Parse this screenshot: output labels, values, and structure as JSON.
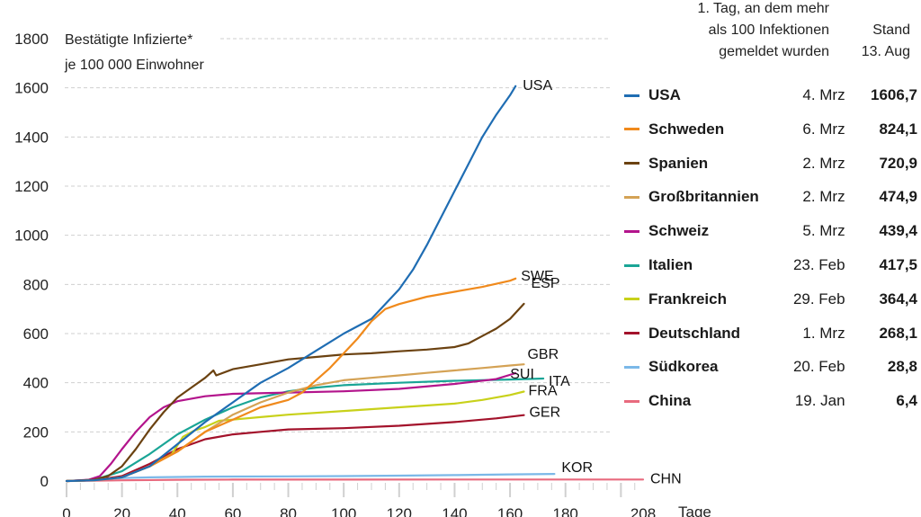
{
  "chart_data": {
    "type": "line",
    "title": "Bestätigte Infizierte* je 100 000 Einwohner",
    "subtitle_lines": [
      "Bestätigte Infizierte*",
      "je 100 000 Einwohner"
    ],
    "xlabel": "Tage",
    "ylabel": "",
    "xlim": [
      0,
      208
    ],
    "ylim": [
      0,
      1800
    ],
    "x_ticks": [
      0,
      20,
      40,
      60,
      80,
      100,
      120,
      140,
      160,
      180,
      208
    ],
    "y_ticks": [
      0,
      200,
      400,
      600,
      800,
      1000,
      1200,
      1400,
      1600,
      1800
    ],
    "grid": true,
    "legend": {
      "placement": "right",
      "header_first_day": [
        "1. Tag, an dem mehr",
        "als 100 Infektionen",
        "gemeldet wurden"
      ],
      "header_value": [
        "Stand",
        "13. Aug"
      ]
    },
    "series": [
      {
        "name": "USA",
        "code": "USA",
        "color": "#1f6db3",
        "first_day": "4. Mrz",
        "value": "1606,7",
        "points": [
          [
            0,
            0
          ],
          [
            10,
            3
          ],
          [
            20,
            15
          ],
          [
            30,
            60
          ],
          [
            40,
            150
          ],
          [
            50,
            240
          ],
          [
            60,
            320
          ],
          [
            70,
            400
          ],
          [
            80,
            460
          ],
          [
            90,
            530
          ],
          [
            100,
            600
          ],
          [
            110,
            660
          ],
          [
            120,
            780
          ],
          [
            125,
            860
          ],
          [
            130,
            960
          ],
          [
            135,
            1070
          ],
          [
            140,
            1180
          ],
          [
            145,
            1290
          ],
          [
            150,
            1400
          ],
          [
            155,
            1490
          ],
          [
            160,
            1570
          ],
          [
            162,
            1607
          ]
        ]
      },
      {
        "name": "Schweden",
        "code": "SWE",
        "color": "#f08a1c",
        "first_day": "6. Mrz",
        "value": "824,1",
        "points": [
          [
            0,
            0
          ],
          [
            10,
            3
          ],
          [
            20,
            15
          ],
          [
            30,
            60
          ],
          [
            40,
            120
          ],
          [
            50,
            200
          ],
          [
            60,
            250
          ],
          [
            70,
            300
          ],
          [
            80,
            330
          ],
          [
            85,
            360
          ],
          [
            90,
            410
          ],
          [
            95,
            460
          ],
          [
            100,
            520
          ],
          [
            105,
            580
          ],
          [
            110,
            650
          ],
          [
            115,
            700
          ],
          [
            120,
            720
          ],
          [
            130,
            750
          ],
          [
            140,
            770
          ],
          [
            150,
            790
          ],
          [
            160,
            815
          ],
          [
            162,
            824
          ]
        ]
      },
      {
        "name": "Spanien",
        "code": "ESP",
        "color": "#6b4211",
        "first_day": "2. Mrz",
        "value": "720,9",
        "points": [
          [
            0,
            0
          ],
          [
            10,
            5
          ],
          [
            15,
            20
          ],
          [
            20,
            60
          ],
          [
            25,
            130
          ],
          [
            30,
            210
          ],
          [
            35,
            280
          ],
          [
            40,
            340
          ],
          [
            45,
            380
          ],
          [
            50,
            420
          ],
          [
            53,
            450
          ],
          [
            54,
            430
          ],
          [
            60,
            455
          ],
          [
            70,
            475
          ],
          [
            80,
            495
          ],
          [
            90,
            505
          ],
          [
            100,
            515
          ],
          [
            110,
            520
          ],
          [
            120,
            528
          ],
          [
            130,
            535
          ],
          [
            140,
            545
          ],
          [
            145,
            560
          ],
          [
            150,
            590
          ],
          [
            155,
            620
          ],
          [
            160,
            660
          ],
          [
            165,
            721
          ]
        ]
      },
      {
        "name": "Großbritannien",
        "code": "GBR",
        "color": "#d4a255",
        "first_day": "2. Mrz",
        "value": "474,9",
        "points": [
          [
            0,
            0
          ],
          [
            10,
            3
          ],
          [
            20,
            15
          ],
          [
            30,
            60
          ],
          [
            40,
            120
          ],
          [
            50,
            200
          ],
          [
            60,
            270
          ],
          [
            70,
            320
          ],
          [
            80,
            360
          ],
          [
            90,
            390
          ],
          [
            100,
            410
          ],
          [
            110,
            420
          ],
          [
            120,
            430
          ],
          [
            130,
            440
          ],
          [
            140,
            450
          ],
          [
            150,
            460
          ],
          [
            160,
            470
          ],
          [
            165,
            475
          ]
        ]
      },
      {
        "name": "Schweiz",
        "code": "SUI",
        "color": "#b3148c",
        "first_day": "5. Mrz",
        "value": "439,4",
        "points": [
          [
            0,
            0
          ],
          [
            8,
            5
          ],
          [
            12,
            20
          ],
          [
            16,
            70
          ],
          [
            20,
            130
          ],
          [
            25,
            200
          ],
          [
            30,
            260
          ],
          [
            35,
            300
          ],
          [
            40,
            325
          ],
          [
            50,
            345
          ],
          [
            60,
            355
          ],
          [
            80,
            360
          ],
          [
            100,
            365
          ],
          [
            120,
            375
          ],
          [
            140,
            395
          ],
          [
            155,
            415
          ],
          [
            162,
            439
          ]
        ]
      },
      {
        "name": "Italien",
        "code": "ITA",
        "color": "#1aa596",
        "first_day": "23. Feb",
        "value": "417,5",
        "points": [
          [
            0,
            0
          ],
          [
            10,
            5
          ],
          [
            20,
            40
          ],
          [
            30,
            110
          ],
          [
            40,
            190
          ],
          [
            50,
            250
          ],
          [
            60,
            300
          ],
          [
            70,
            340
          ],
          [
            80,
            365
          ],
          [
            90,
            380
          ],
          [
            100,
            390
          ],
          [
            120,
            400
          ],
          [
            140,
            408
          ],
          [
            160,
            413
          ],
          [
            172,
            417
          ]
        ]
      },
      {
        "name": "Frankreich",
        "code": "FRA",
        "color": "#c8d11a",
        "first_day": "29. Feb",
        "value": "364,4",
        "points": [
          [
            0,
            0
          ],
          [
            10,
            3
          ],
          [
            20,
            15
          ],
          [
            30,
            60
          ],
          [
            38,
            110
          ],
          [
            42,
            180
          ],
          [
            46,
            205
          ],
          [
            50,
            220
          ],
          [
            55,
            245
          ],
          [
            60,
            250
          ],
          [
            70,
            260
          ],
          [
            80,
            270
          ],
          [
            100,
            285
          ],
          [
            120,
            300
          ],
          [
            140,
            315
          ],
          [
            150,
            330
          ],
          [
            160,
            350
          ],
          [
            165,
            364
          ]
        ]
      },
      {
        "name": "Deutschland",
        "code": "GER",
        "color": "#a3122b",
        "first_day": "1. Mrz",
        "value": "268,1",
        "points": [
          [
            0,
            0
          ],
          [
            10,
            3
          ],
          [
            20,
            20
          ],
          [
            30,
            70
          ],
          [
            40,
            130
          ],
          [
            50,
            170
          ],
          [
            60,
            190
          ],
          [
            70,
            200
          ],
          [
            80,
            210
          ],
          [
            100,
            215
          ],
          [
            120,
            225
          ],
          [
            140,
            240
          ],
          [
            155,
            255
          ],
          [
            165,
            268
          ]
        ]
      },
      {
        "name": "Südkorea",
        "code": "KOR",
        "color": "#7bb8e8",
        "first_day": "20. Feb",
        "value": "28,8",
        "points": [
          [
            0,
            0
          ],
          [
            10,
            5
          ],
          [
            20,
            12
          ],
          [
            30,
            15
          ],
          [
            50,
            18
          ],
          [
            80,
            19
          ],
          [
            100,
            20
          ],
          [
            120,
            22
          ],
          [
            140,
            24
          ],
          [
            160,
            27
          ],
          [
            176,
            29
          ]
        ]
      },
      {
        "name": "China",
        "code": "CHN",
        "color": "#e86a7e",
        "first_day": "19. Jan",
        "value": "6,4",
        "points": [
          [
            0,
            0
          ],
          [
            20,
            3
          ],
          [
            40,
            5
          ],
          [
            60,
            6
          ],
          [
            100,
            6
          ],
          [
            150,
            6.2
          ],
          [
            208,
            6.4
          ]
        ]
      }
    ]
  }
}
